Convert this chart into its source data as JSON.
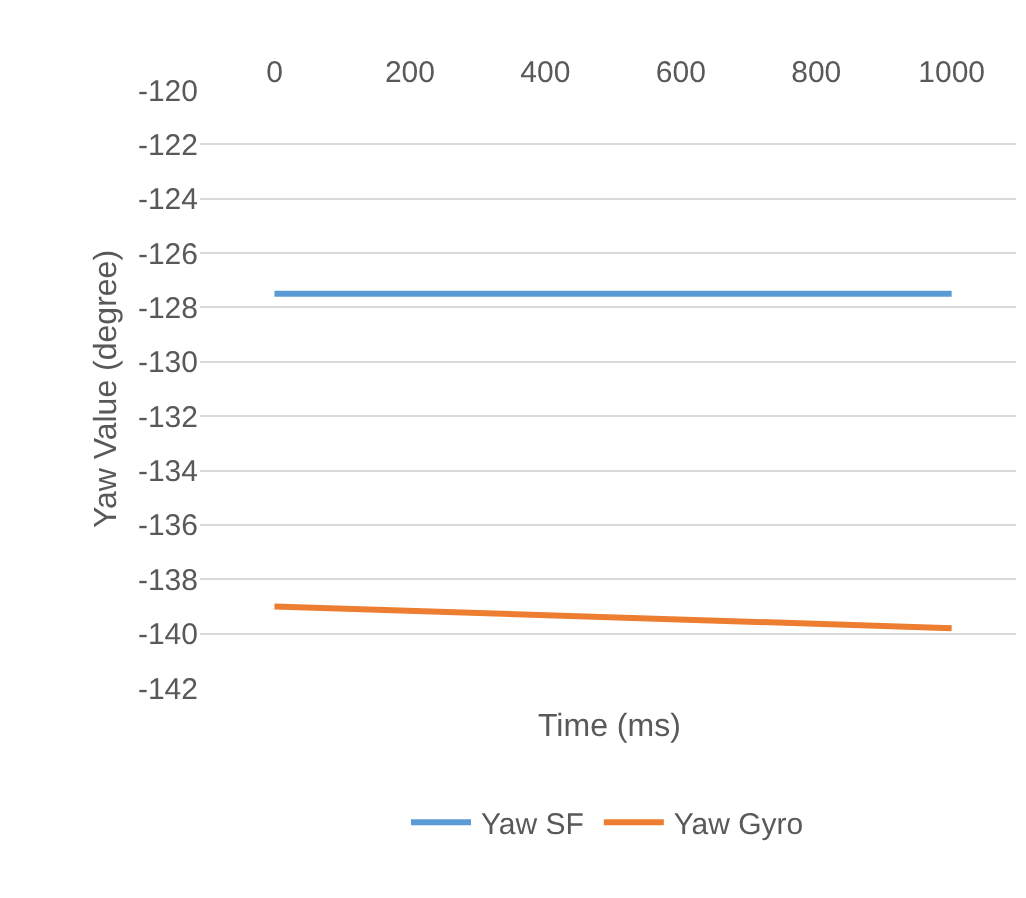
{
  "chart_data": {
    "type": "line",
    "xlabel": "Time (ms)",
    "ylabel": "Yaw Value (degree)",
    "x": [
      0,
      1000
    ],
    "series": [
      {
        "name": "Yaw SF",
        "color": "#5b9bd5",
        "values": [
          -127.5,
          -127.5
        ]
      },
      {
        "name": "Yaw Gyro",
        "color": "#ed7d31",
        "values": [
          -139.0,
          -139.8
        ]
      }
    ],
    "xlim": [
      -110,
      1095
    ],
    "xticks": [
      0,
      200,
      400,
      600,
      800,
      1000
    ],
    "ylim": [
      -142,
      -120
    ],
    "yticks": [
      -142,
      -140,
      -138,
      -136,
      -134,
      -132,
      -130,
      -128,
      -126,
      -124,
      -122,
      -120
    ],
    "grid": "y",
    "legend": "bottom",
    "marker": "none",
    "line_style": "solid"
  }
}
